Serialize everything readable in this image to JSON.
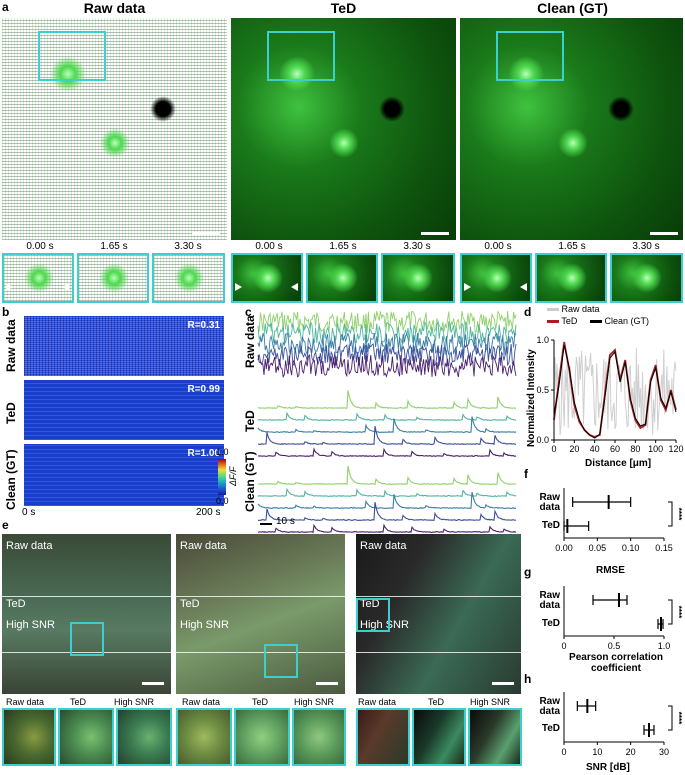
{
  "panel_a": {
    "label": "a",
    "titles": [
      "Raw data",
      "TeD",
      "Clean (GT)"
    ],
    "times": [
      "0.00 s",
      "1.65 s",
      "3.30 s"
    ]
  },
  "panel_b": {
    "label": "b",
    "rows": [
      {
        "name": "Raw data",
        "r": "R=0.31"
      },
      {
        "name": "TeD",
        "r": "R=0.99"
      },
      {
        "name": "Clean (GT)",
        "r": "R=1.00"
      }
    ],
    "colorbar": {
      "max": "1.0",
      "min": "0.0",
      "label": "ΔF/F"
    },
    "x_start": "0 s",
    "x_end": "200 s"
  },
  "panel_c": {
    "label": "c",
    "rows": [
      "Raw data",
      "TeD",
      "Clean (GT)"
    ],
    "scale": "10 s",
    "trace_colors": [
      "#8fd16a",
      "#4fb5a0",
      "#3a7ea6",
      "#3c4f9a",
      "#4a1f6e"
    ]
  },
  "panel_d": {
    "label": "d",
    "legend": [
      "Raw data",
      "TeD",
      "Clean (GT)"
    ],
    "ylabel": "Normalized Intensity",
    "xlabel": "Distance [μm]",
    "xticks": [
      "0",
      "20",
      "40",
      "60",
      "80",
      "100",
      "120"
    ],
    "yticks": [
      "0.0",
      "0.5",
      "1.0"
    ]
  },
  "panel_e": {
    "label": "e",
    "overlays": [
      "Raw data",
      "TeD",
      "High SNR"
    ],
    "thumbs": [
      "Raw data",
      "TeD",
      "High SNR"
    ]
  },
  "panel_f": {
    "label": "f",
    "cats": [
      "Raw data",
      "TeD"
    ],
    "xlabel": "RMSE",
    "xticks": [
      "0.00",
      "0.05",
      "0.10",
      "0.15"
    ],
    "sig": "****"
  },
  "panel_g": {
    "label": "g",
    "cats": [
      "Raw data",
      "TeD"
    ],
    "xlabel": "Pearson correlation coefficient",
    "xticks": [
      "0",
      "0.5",
      "1.0"
    ],
    "sig": "****"
  },
  "panel_h": {
    "label": "h",
    "cats": [
      "Raw data",
      "TeD"
    ],
    "xlabel": "SNR [dB]",
    "xticks": [
      "0",
      "10",
      "20",
      "30"
    ],
    "sig": "****"
  },
  "chart_data": [
    {
      "type": "line",
      "panel": "d",
      "xlabel": "Distance [μm]",
      "ylabel": "Normalized Intensity",
      "xlim": [
        0,
        120
      ],
      "ylim": [
        0,
        1
      ],
      "x": [
        0,
        5,
        10,
        15,
        20,
        25,
        30,
        35,
        40,
        45,
        50,
        55,
        60,
        65,
        70,
        75,
        80,
        85,
        90,
        95,
        100,
        105,
        110,
        115,
        120
      ],
      "series": [
        {
          "name": "TeD",
          "values": [
            0.2,
            0.6,
            0.98,
            0.7,
            0.35,
            0.18,
            0.1,
            0.05,
            0.03,
            0.05,
            0.45,
            0.85,
            0.9,
            0.6,
            0.8,
            0.4,
            0.2,
            0.12,
            0.15,
            0.6,
            0.75,
            0.4,
            0.3,
            0.5,
            0.3
          ]
        },
        {
          "name": "Clean (GT)",
          "values": [
            0.25,
            0.55,
            0.95,
            0.72,
            0.38,
            0.2,
            0.1,
            0.05,
            0.02,
            0.06,
            0.42,
            0.82,
            0.88,
            0.58,
            0.78,
            0.42,
            0.22,
            0.14,
            0.16,
            0.58,
            0.72,
            0.42,
            0.32,
            0.48,
            0.28
          ]
        }
      ]
    },
    {
      "type": "scatter",
      "panel": "f",
      "xlabel": "RMSE",
      "categories": [
        "Raw data",
        "TeD"
      ],
      "mean": [
        0.067,
        0.005
      ],
      "lower": [
        0.013,
        0.0
      ],
      "upper": [
        0.1,
        0.037
      ],
      "xlim": [
        0,
        0.15
      ]
    },
    {
      "type": "scatter",
      "panel": "g",
      "xlabel": "Pearson correlation coefficient",
      "categories": [
        "Raw data",
        "TeD"
      ],
      "mean": [
        0.55,
        0.97
      ],
      "lower": [
        0.29,
        0.94
      ],
      "upper": [
        0.63,
        0.99
      ],
      "xlim": [
        0,
        1.0
      ]
    },
    {
      "type": "scatter",
      "panel": "h",
      "xlabel": "SNR [dB]",
      "categories": [
        "Raw data",
        "TeD"
      ],
      "mean": [
        7,
        25.5
      ],
      "lower": [
        4,
        24
      ],
      "upper": [
        9.5,
        27
      ],
      "xlim": [
        0,
        30
      ]
    }
  ]
}
